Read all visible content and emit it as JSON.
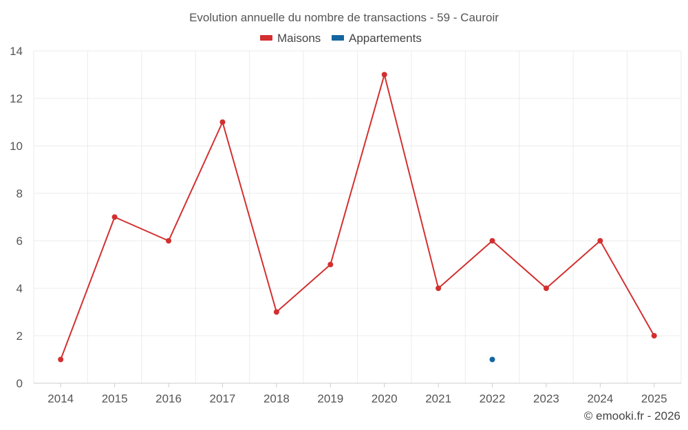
{
  "chart_data": {
    "type": "line",
    "title": "Evolution annuelle du nombre de transactions - 59 - Cauroir",
    "categories": [
      "2014",
      "2015",
      "2016",
      "2017",
      "2018",
      "2019",
      "2020",
      "2021",
      "2022",
      "2023",
      "2024",
      "2025"
    ],
    "series": [
      {
        "name": "Maisons",
        "color": "#d32f2f",
        "values": [
          1,
          7,
          6,
          11,
          3,
          5,
          13,
          4,
          6,
          4,
          6,
          2
        ]
      },
      {
        "name": "Appartements",
        "color": "#1565a0",
        "values": [
          null,
          null,
          null,
          null,
          null,
          null,
          null,
          null,
          1,
          null,
          null,
          null
        ]
      }
    ],
    "ylim": [
      0,
      14
    ],
    "yticks": [
      0,
      2,
      4,
      6,
      8,
      10,
      12,
      14
    ],
    "legend_position": "top-center",
    "grid": true,
    "xlabel": "",
    "ylabel": ""
  },
  "footer": {
    "credit": "© emooki.fr - 2026"
  }
}
